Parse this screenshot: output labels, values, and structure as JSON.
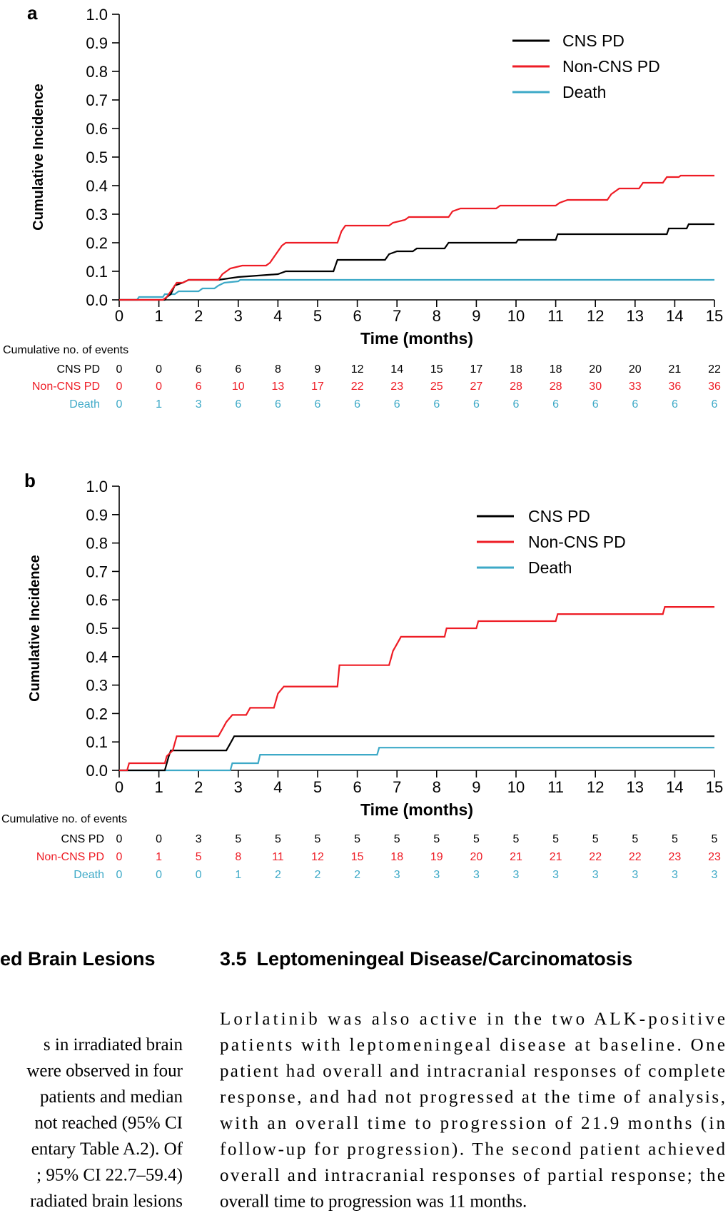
{
  "chart_data": [
    {
      "type": "line",
      "panel_label": "a",
      "ylabel": "Cumulative Incidence",
      "xlabel": "Time (months)",
      "xlim": [
        0,
        15
      ],
      "ylim": [
        0,
        1.0
      ],
      "xticks": [
        "0",
        "1",
        "2",
        "3",
        "4",
        "5",
        "6",
        "7",
        "8",
        "9",
        "10",
        "11",
        "12",
        "13",
        "14",
        "15"
      ],
      "yticks": [
        "0.0",
        "0.1",
        "0.2",
        "0.3",
        "0.4",
        "0.5",
        "0.6",
        "0.7",
        "0.8",
        "0.9",
        "1.0"
      ],
      "legend_position": "top-right",
      "series": [
        {
          "name": "CNS PD",
          "color": "#000000",
          "points": [
            [
              0,
              0
            ],
            [
              1.15,
              0
            ],
            [
              1.2,
              0.01
            ],
            [
              1.3,
              0.02
            ],
            [
              1.4,
              0.05
            ],
            [
              1.6,
              0.06
            ],
            [
              1.75,
              0.07
            ],
            [
              2.0,
              0.07
            ],
            [
              2.5,
              0.07
            ],
            [
              3.0,
              0.08
            ],
            [
              4.0,
              0.09
            ],
            [
              4.2,
              0.1
            ],
            [
              5.4,
              0.1
            ],
            [
              5.45,
              0.12
            ],
            [
              5.5,
              0.14
            ],
            [
              6.7,
              0.14
            ],
            [
              6.8,
              0.16
            ],
            [
              7.0,
              0.17
            ],
            [
              7.4,
              0.17
            ],
            [
              7.5,
              0.18
            ],
            [
              8.2,
              0.18
            ],
            [
              8.3,
              0.2
            ],
            [
              10.0,
              0.2
            ],
            [
              10.05,
              0.21
            ],
            [
              11.0,
              0.21
            ],
            [
              11.05,
              0.23
            ],
            [
              13.8,
              0.23
            ],
            [
              13.85,
              0.25
            ],
            [
              14.3,
              0.25
            ],
            [
              14.35,
              0.265
            ],
            [
              15,
              0.265
            ]
          ]
        },
        {
          "name": "Non-CNS PD",
          "color": "#ee1c25",
          "points": [
            [
              0,
              0
            ],
            [
              1.1,
              0
            ],
            [
              1.2,
              0.01
            ],
            [
              1.35,
              0.04
            ],
            [
              1.45,
              0.06
            ],
            [
              1.6,
              0.06
            ],
            [
              1.75,
              0.07
            ],
            [
              2.5,
              0.07
            ],
            [
              2.6,
              0.09
            ],
            [
              2.8,
              0.11
            ],
            [
              3.1,
              0.12
            ],
            [
              3.7,
              0.12
            ],
            [
              3.8,
              0.13
            ],
            [
              3.9,
              0.15
            ],
            [
              4.0,
              0.17
            ],
            [
              4.1,
              0.19
            ],
            [
              4.2,
              0.2
            ],
            [
              5.5,
              0.2
            ],
            [
              5.55,
              0.22
            ],
            [
              5.6,
              0.24
            ],
            [
              5.7,
              0.26
            ],
            [
              6.8,
              0.26
            ],
            [
              6.9,
              0.27
            ],
            [
              7.2,
              0.28
            ],
            [
              7.3,
              0.29
            ],
            [
              8.3,
              0.29
            ],
            [
              8.4,
              0.31
            ],
            [
              8.6,
              0.32
            ],
            [
              9.5,
              0.32
            ],
            [
              9.6,
              0.33
            ],
            [
              11.0,
              0.33
            ],
            [
              11.1,
              0.34
            ],
            [
              11.3,
              0.35
            ],
            [
              12.3,
              0.35
            ],
            [
              12.4,
              0.37
            ],
            [
              12.6,
              0.39
            ],
            [
              13.1,
              0.39
            ],
            [
              13.2,
              0.41
            ],
            [
              13.7,
              0.41
            ],
            [
              13.8,
              0.43
            ],
            [
              14.1,
              0.43
            ],
            [
              14.15,
              0.435
            ],
            [
              15,
              0.435
            ]
          ]
        },
        {
          "name": "Death",
          "color": "#3da9c7",
          "points": [
            [
              0,
              0
            ],
            [
              0.45,
              0
            ],
            [
              0.5,
              0.01
            ],
            [
              1.1,
              0.01
            ],
            [
              1.15,
              0.02
            ],
            [
              1.4,
              0.02
            ],
            [
              1.5,
              0.03
            ],
            [
              2.0,
              0.03
            ],
            [
              2.1,
              0.04
            ],
            [
              2.4,
              0.04
            ],
            [
              2.5,
              0.05
            ],
            [
              2.65,
              0.06
            ],
            [
              3.0,
              0.065
            ],
            [
              3.05,
              0.07
            ],
            [
              15,
              0.07
            ]
          ]
        }
      ],
      "risk_table": {
        "title": "Cumulative no. of events",
        "rows": [
          {
            "name": "CNS PD",
            "color": "#000000",
            "values": [
              "0",
              "0",
              "6",
              "6",
              "8",
              "9",
              "12",
              "14",
              "15",
              "17",
              "18",
              "18",
              "20",
              "20",
              "21",
              "22"
            ]
          },
          {
            "name": "Non-CNS PD",
            "color": "#ee1c25",
            "values": [
              "0",
              "0",
              "6",
              "10",
              "13",
              "17",
              "22",
              "23",
              "25",
              "27",
              "28",
              "28",
              "30",
              "33",
              "36",
              "36"
            ]
          },
          {
            "name": "Death",
            "color": "#3da9c7",
            "values": [
              "0",
              "1",
              "3",
              "6",
              "6",
              "6",
              "6",
              "6",
              "6",
              "6",
              "6",
              "6",
              "6",
              "6",
              "6",
              "6"
            ]
          }
        ]
      }
    },
    {
      "type": "line",
      "panel_label": "b",
      "ylabel": "Cumulative Incidence",
      "xlabel": "Time (months)",
      "xlim": [
        0,
        15
      ],
      "ylim": [
        0,
        1.0
      ],
      "xticks": [
        "0",
        "1",
        "2",
        "3",
        "4",
        "5",
        "6",
        "7",
        "8",
        "9",
        "10",
        "11",
        "12",
        "13",
        "14",
        "15"
      ],
      "yticks": [
        "0.0",
        "0.1",
        "0.2",
        "0.3",
        "0.4",
        "0.5",
        "0.6",
        "0.7",
        "0.8",
        "0.9",
        "1.0"
      ],
      "legend_position": "top-right",
      "series": [
        {
          "name": "CNS PD",
          "color": "#000000",
          "points": [
            [
              0,
              0
            ],
            [
              1.15,
              0
            ],
            [
              1.2,
              0.025
            ],
            [
              1.25,
              0.05
            ],
            [
              1.3,
              0.07
            ],
            [
              2.7,
              0.07
            ],
            [
              2.8,
              0.095
            ],
            [
              2.9,
              0.12
            ],
            [
              15,
              0.12
            ]
          ]
        },
        {
          "name": "Non-CNS PD",
          "color": "#ee1c25",
          "points": [
            [
              0,
              0
            ],
            [
              0.2,
              0
            ],
            [
              0.25,
              0.025
            ],
            [
              1.15,
              0.025
            ],
            [
              1.2,
              0.05
            ],
            [
              1.35,
              0.07
            ],
            [
              1.45,
              0.12
            ],
            [
              2.5,
              0.12
            ],
            [
              2.6,
              0.145
            ],
            [
              2.7,
              0.17
            ],
            [
              2.85,
              0.195
            ],
            [
              3.2,
              0.195
            ],
            [
              3.3,
              0.22
            ],
            [
              3.9,
              0.22
            ],
            [
              3.95,
              0.245
            ],
            [
              4.0,
              0.27
            ],
            [
              4.15,
              0.295
            ],
            [
              5.5,
              0.295
            ],
            [
              5.55,
              0.37
            ],
            [
              6.8,
              0.37
            ],
            [
              6.85,
              0.395
            ],
            [
              6.9,
              0.42
            ],
            [
              7.0,
              0.445
            ],
            [
              7.1,
              0.47
            ],
            [
              8.2,
              0.47
            ],
            [
              8.25,
              0.5
            ],
            [
              9.0,
              0.5
            ],
            [
              9.05,
              0.525
            ],
            [
              11.0,
              0.525
            ],
            [
              11.05,
              0.55
            ],
            [
              13.7,
              0.55
            ],
            [
              13.75,
              0.575
            ],
            [
              15,
              0.575
            ]
          ]
        },
        {
          "name": "Death",
          "color": "#3da9c7",
          "points": [
            [
              0,
              0
            ],
            [
              2.8,
              0
            ],
            [
              2.85,
              0.025
            ],
            [
              3.5,
              0.025
            ],
            [
              3.55,
              0.055
            ],
            [
              6.5,
              0.055
            ],
            [
              6.55,
              0.08
            ],
            [
              15,
              0.08
            ]
          ]
        }
      ],
      "risk_table": {
        "title": "Cumulative no. of events",
        "rows": [
          {
            "name": "CNS PD",
            "color": "#000000",
            "values": [
              "0",
              "0",
              "3",
              "5",
              "5",
              "5",
              "5",
              "5",
              "5",
              "5",
              "5",
              "5",
              "5",
              "5",
              "5",
              "5"
            ]
          },
          {
            "name": "Non-CNS PD",
            "color": "#ee1c25",
            "values": [
              "0",
              "1",
              "5",
              "8",
              "11",
              "12",
              "15",
              "18",
              "19",
              "20",
              "21",
              "21",
              "22",
              "22",
              "23",
              "23"
            ]
          },
          {
            "name": "Death",
            "color": "#3da9c7",
            "values": [
              "0",
              "0",
              "0",
              "1",
              "2",
              "2",
              "2",
              "3",
              "3",
              "3",
              "3",
              "3",
              "3",
              "3",
              "3",
              "3"
            ]
          }
        ]
      }
    }
  ],
  "text": {
    "left_heading": "ed Brain Lesions",
    "right_heading_num": "3.5",
    "right_heading_text": "Leptomeningeal Disease/Carcinomatosis",
    "left_lines": [
      "s in irradiated brain",
      "were observed in four",
      "patients and median",
      "not reached (95% CI",
      "entary Table A.2). Of",
      "; 95% CI 22.7–59.4)",
      "radiated brain lesions"
    ],
    "right_lines": [
      "Lorlatinib was also active in the two ALK-positive",
      "patients with leptomeningeal disease at baseline. One",
      "patient had overall and intracranial responses of complete",
      "response, and had not progressed at the time of analysis,",
      "with an overall time to progression of 21.9 months (in",
      "follow-up for progression). The second patient achieved",
      "overall and intracranial responses of partial response; the",
      "overall time to progression was 11 months."
    ]
  }
}
